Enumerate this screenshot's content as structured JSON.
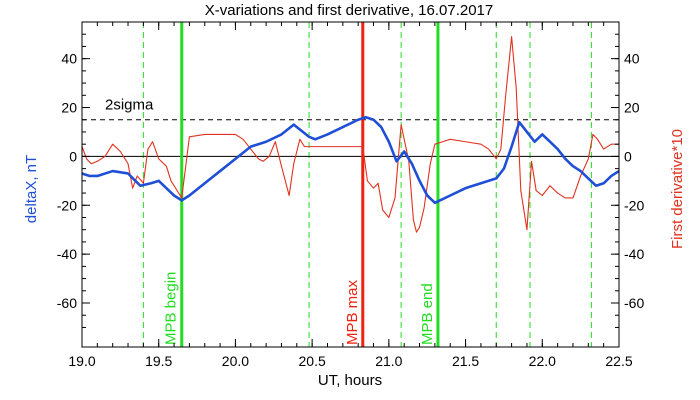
{
  "chart_data": {
    "type": "line",
    "title": "X-variations and first derivative, 16.07.2017",
    "xlabel": "UT, hours",
    "ylabel_left": "deltaX, nT",
    "ylabel_right": "First derivative*10",
    "xlim": [
      19.0,
      22.5
    ],
    "ylim": [
      -78,
      55
    ],
    "x_ticks": [
      19.0,
      19.5,
      20.0,
      20.5,
      21.0,
      21.5,
      22.0,
      22.5
    ],
    "x_tick_labels": [
      "19.0",
      "19.5",
      "20.0",
      "20.5",
      "21.0",
      "21.5",
      "22.0",
      "22.5"
    ],
    "y_ticks": [
      -60,
      -40,
      -20,
      0,
      20,
      40
    ],
    "y_tick_labels": [
      "-60",
      "-40",
      "-20",
      "0",
      "20",
      "40"
    ],
    "colors": {
      "deltaX": "#1f4fd6",
      "derivative": "#e0321e",
      "mpb_boundary": "#22dd22",
      "mpb_max": "#ee2211",
      "dashed_marker": "#22dd22",
      "reference": "#000000"
    },
    "series": [
      {
        "name": "deltaX, nT",
        "x": [
          19.0,
          19.05,
          19.1,
          19.2,
          19.3,
          19.38,
          19.45,
          19.5,
          19.55,
          19.6,
          19.65,
          19.7,
          19.8,
          19.9,
          20.0,
          20.1,
          20.2,
          20.3,
          20.38,
          20.42,
          20.48,
          20.52,
          20.6,
          20.7,
          20.8,
          20.85,
          20.9,
          20.95,
          21.0,
          21.05,
          21.1,
          21.15,
          21.2,
          21.25,
          21.3,
          21.4,
          21.5,
          21.6,
          21.7,
          21.75,
          21.8,
          21.85,
          21.9,
          21.95,
          22.0,
          22.05,
          22.1,
          22.15,
          22.2,
          22.25,
          22.3,
          22.35,
          22.4,
          22.45,
          22.5
        ],
        "y": [
          -7,
          -8,
          -8,
          -6,
          -7,
          -12,
          -11,
          -10,
          -13,
          -16,
          -18,
          -16,
          -11,
          -6,
          -1,
          4,
          6,
          9,
          13,
          11,
          8,
          7,
          9,
          12,
          15,
          16,
          15,
          12,
          6,
          -2,
          2,
          -3,
          -10,
          -16,
          -19,
          -16,
          -13,
          -11,
          -9,
          -5,
          4,
          14,
          10,
          6,
          9,
          6,
          3,
          -1,
          -4,
          -6,
          -9,
          -12,
          -11,
          -8,
          -6
        ]
      },
      {
        "name": "First derivative*10",
        "x": [
          19.0,
          19.03,
          19.06,
          19.1,
          19.15,
          19.2,
          19.25,
          19.3,
          19.33,
          19.36,
          19.4,
          19.43,
          19.46,
          19.5,
          19.55,
          19.58,
          19.62,
          19.65,
          19.7,
          19.8,
          19.9,
          20.0,
          20.05,
          20.1,
          20.15,
          20.18,
          20.22,
          20.26,
          20.3,
          20.35,
          20.38,
          20.42,
          20.45,
          20.5,
          20.6,
          20.7,
          20.8,
          20.83,
          20.86,
          20.9,
          20.93,
          20.96,
          21.0,
          21.04,
          21.08,
          21.1,
          21.13,
          21.16,
          21.18,
          21.2,
          21.23,
          21.27,
          21.3,
          21.35,
          21.4,
          21.5,
          21.6,
          21.65,
          21.7,
          21.73,
          21.76,
          21.8,
          21.83,
          21.86,
          21.9,
          21.93,
          21.96,
          22.0,
          22.05,
          22.1,
          22.15,
          22.2,
          22.25,
          22.3,
          22.33,
          22.36,
          22.4,
          22.45,
          22.5
        ],
        "y": [
          4,
          -1,
          -3,
          -2,
          0,
          5,
          2,
          -3,
          -13,
          -8,
          -11,
          3,
          6,
          -1,
          -4,
          -10,
          -14,
          -17,
          8,
          9,
          9,
          9,
          7,
          3,
          -1,
          -2,
          0,
          6,
          -4,
          -16,
          -3,
          7,
          4,
          4,
          4,
          4,
          4,
          4,
          -10,
          -13,
          -11,
          -22,
          -25,
          -17,
          13,
          7,
          -2,
          -26,
          -31,
          -29,
          -21,
          -3,
          5,
          6,
          7,
          6,
          5,
          3,
          -1,
          3,
          24,
          49,
          28,
          -14,
          -30,
          -2,
          -14,
          -16,
          -12,
          -15,
          -17,
          -17,
          -8,
          -1,
          9,
          7,
          3,
          5,
          5
        ]
      }
    ],
    "reference_lines": [
      {
        "type": "horizontal",
        "y": 15,
        "style": "dashed",
        "label": "2sigma"
      },
      {
        "type": "horizontal",
        "y": 0,
        "style": "solid",
        "label": ""
      }
    ],
    "markers": [
      {
        "x": 19.65,
        "label": "MPB begin",
        "kind": "mpb_boundary"
      },
      {
        "x": 20.83,
        "label": "MPB max",
        "kind": "mpb_max"
      },
      {
        "x": 21.32,
        "label": "MPB end",
        "kind": "mpb_boundary"
      }
    ],
    "dashed_markers_x": [
      19.4,
      20.48,
      21.08,
      21.7,
      21.92,
      22.32
    ],
    "grid": false,
    "legend": "none"
  }
}
